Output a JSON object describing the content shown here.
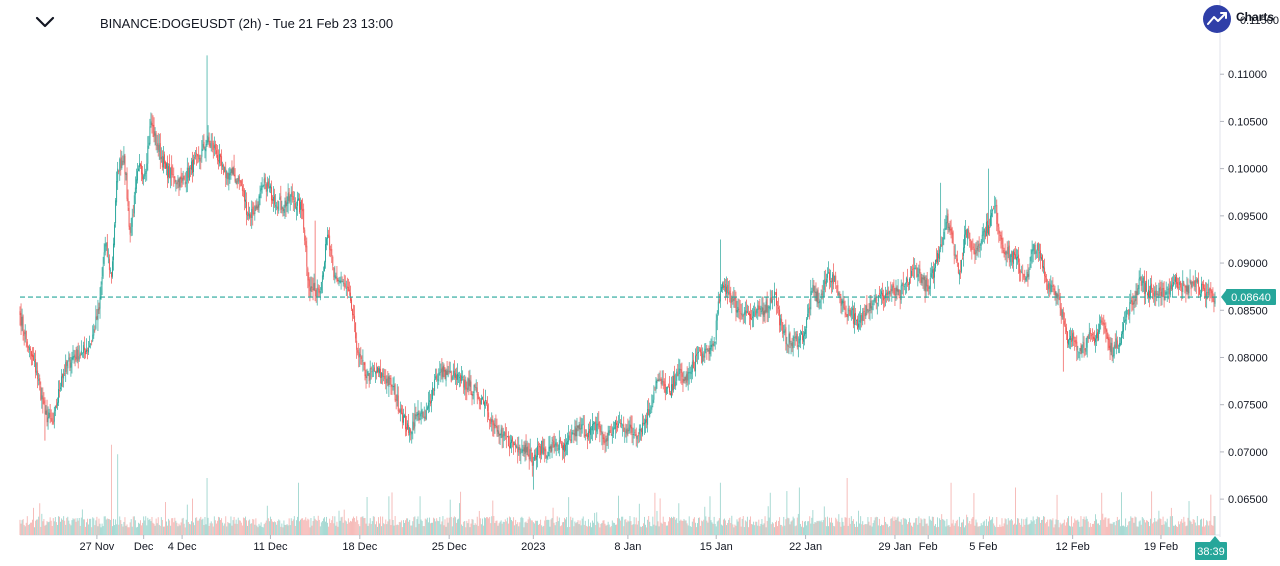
{
  "header": {
    "title": "BINANCE:DOGEUSDT (2h) - Tue 21 Feb 23 13:00",
    "logo_text": "Charts",
    "logo_cut": "0.11500"
  },
  "colors": {
    "up": "#26a69a",
    "down": "#ef5350",
    "volume_up": "#9fd6cf",
    "volume_down": "#f5b6b3",
    "price_line": "#26a69a",
    "logo_bg": "#2f3fa8"
  },
  "chart_data": {
    "type": "candlestick",
    "symbol": "BINANCE:DOGEUSDT",
    "interval": "2h",
    "last_price": 0.0864,
    "last_price_label": "0.08640",
    "countdown": "38:39",
    "y_axis": {
      "ticks": [
        0.11,
        0.105,
        0.1,
        0.095,
        0.09,
        0.085,
        0.08,
        0.075,
        0.07,
        0.065
      ],
      "tick_labels": [
        "0.11000",
        "0.10500",
        "0.10000",
        "0.09500",
        "0.09000",
        "0.08500",
        "0.08000",
        "0.07500",
        "0.07000",
        "0.06500"
      ],
      "range": [
        0.0612,
        0.1168
      ]
    },
    "x_axis": {
      "ticks": [
        {
          "label": "27 Nov",
          "index": 74
        },
        {
          "label": "Dec",
          "index": 119
        },
        {
          "label": "4 Dec",
          "index": 156
        },
        {
          "label": "11 Dec",
          "index": 241
        },
        {
          "label": "18 Dec",
          "index": 327
        },
        {
          "label": "25 Dec",
          "index": 413
        },
        {
          "label": "2023",
          "index": 494
        },
        {
          "label": "8 Jan",
          "index": 585
        },
        {
          "label": "15 Jan",
          "index": 670
        },
        {
          "label": "22 Jan",
          "index": 756
        },
        {
          "label": "29 Jan",
          "index": 842
        },
        {
          "label": "Feb",
          "index": 874
        },
        {
          "label": "5 Feb",
          "index": 927
        },
        {
          "label": "12 Feb",
          "index": 1013
        },
        {
          "label": "19 Feb",
          "index": 1098
        }
      ]
    },
    "anchors": [
      [
        0,
        0.0845
      ],
      [
        8,
        0.081
      ],
      [
        16,
        0.0785
      ],
      [
        24,
        0.074
      ],
      [
        32,
        0.073
      ],
      [
        40,
        0.078
      ],
      [
        50,
        0.08
      ],
      [
        60,
        0.0805
      ],
      [
        68,
        0.0815
      ],
      [
        76,
        0.085
      ],
      [
        82,
        0.092
      ],
      [
        88,
        0.0885
      ],
      [
        94,
        0.1
      ],
      [
        100,
        0.1015
      ],
      [
        106,
        0.093
      ],
      [
        114,
        0.1
      ],
      [
        120,
        0.0995
      ],
      [
        126,
        0.105
      ],
      [
        132,
        0.1025
      ],
      [
        140,
        0.1
      ],
      [
        148,
        0.099
      ],
      [
        156,
        0.0985
      ],
      [
        164,
        0.1
      ],
      [
        172,
        0.101
      ],
      [
        180,
        0.103
      ],
      [
        188,
        0.102
      ],
      [
        196,
        0.0995
      ],
      [
        204,
        0.0995
      ],
      [
        212,
        0.0985
      ],
      [
        220,
        0.095
      ],
      [
        228,
        0.096
      ],
      [
        236,
        0.0985
      ],
      [
        244,
        0.097
      ],
      [
        252,
        0.096
      ],
      [
        262,
        0.097
      ],
      [
        272,
        0.0955
      ],
      [
        278,
        0.0875
      ],
      [
        284,
        0.087
      ],
      [
        290,
        0.088
      ],
      [
        296,
        0.093
      ],
      [
        302,
        0.0885
      ],
      [
        310,
        0.088
      ],
      [
        318,
        0.086
      ],
      [
        326,
        0.08
      ],
      [
        334,
        0.078
      ],
      [
        342,
        0.0785
      ],
      [
        350,
        0.078
      ],
      [
        358,
        0.077
      ],
      [
        366,
        0.0745
      ],
      [
        374,
        0.072
      ],
      [
        382,
        0.074
      ],
      [
        390,
        0.0735
      ],
      [
        400,
        0.078
      ],
      [
        408,
        0.0785
      ],
      [
        416,
        0.078
      ],
      [
        424,
        0.0775
      ],
      [
        432,
        0.077
      ],
      [
        440,
        0.076
      ],
      [
        448,
        0.0755
      ],
      [
        456,
        0.0725
      ],
      [
        464,
        0.0715
      ],
      [
        472,
        0.071
      ],
      [
        480,
        0.0705
      ],
      [
        488,
        0.0705
      ],
      [
        494,
        0.069
      ],
      [
        500,
        0.0705
      ],
      [
        508,
        0.07
      ],
      [
        516,
        0.071
      ],
      [
        524,
        0.07
      ],
      [
        532,
        0.072
      ],
      [
        540,
        0.0725
      ],
      [
        548,
        0.072
      ],
      [
        556,
        0.073
      ],
      [
        562,
        0.071
      ],
      [
        568,
        0.072
      ],
      [
        576,
        0.073
      ],
      [
        584,
        0.0725
      ],
      [
        592,
        0.072
      ],
      [
        600,
        0.073
      ],
      [
        606,
        0.0745
      ],
      [
        612,
        0.0775
      ],
      [
        620,
        0.077
      ],
      [
        626,
        0.076
      ],
      [
        632,
        0.0785
      ],
      [
        640,
        0.0775
      ],
      [
        646,
        0.0785
      ],
      [
        652,
        0.0805
      ],
      [
        658,
        0.08
      ],
      [
        664,
        0.081
      ],
      [
        668,
        0.0815
      ],
      [
        674,
        0.087
      ],
      [
        680,
        0.0875
      ],
      [
        686,
        0.086
      ],
      [
        692,
        0.085
      ],
      [
        698,
        0.085
      ],
      [
        704,
        0.084
      ],
      [
        712,
        0.085
      ],
      [
        720,
        0.0855
      ],
      [
        726,
        0.087
      ],
      [
        734,
        0.0825
      ],
      [
        742,
        0.0815
      ],
      [
        750,
        0.082
      ],
      [
        756,
        0.083
      ],
      [
        762,
        0.087
      ],
      [
        770,
        0.086
      ],
      [
        778,
        0.089
      ],
      [
        786,
        0.0875
      ],
      [
        794,
        0.085
      ],
      [
        800,
        0.085
      ],
      [
        806,
        0.083
      ],
      [
        814,
        0.0855
      ],
      [
        822,
        0.086
      ],
      [
        830,
        0.0865
      ],
      [
        838,
        0.087
      ],
      [
        846,
        0.0865
      ],
      [
        854,
        0.088
      ],
      [
        862,
        0.0895
      ],
      [
        868,
        0.0885
      ],
      [
        874,
        0.087
      ],
      [
        880,
        0.0895
      ],
      [
        886,
        0.092
      ],
      [
        892,
        0.095
      ],
      [
        898,
        0.092
      ],
      [
        904,
        0.089
      ],
      [
        910,
        0.0935
      ],
      [
        918,
        0.091
      ],
      [
        926,
        0.093
      ],
      [
        932,
        0.094
      ],
      [
        938,
        0.096
      ],
      [
        944,
        0.0925
      ],
      [
        950,
        0.091
      ],
      [
        958,
        0.0905
      ],
      [
        964,
        0.089
      ],
      [
        970,
        0.0885
      ],
      [
        976,
        0.092
      ],
      [
        982,
        0.0905
      ],
      [
        988,
        0.088
      ],
      [
        994,
        0.0875
      ],
      [
        1000,
        0.0865
      ],
      [
        1004,
        0.084
      ],
      [
        1008,
        0.0815
      ],
      [
        1014,
        0.082
      ],
      [
        1020,
        0.081
      ],
      [
        1028,
        0.082
      ],
      [
        1034,
        0.0815
      ],
      [
        1040,
        0.084
      ],
      [
        1044,
        0.083
      ],
      [
        1048,
        0.081
      ],
      [
        1054,
        0.081
      ],
      [
        1060,
        0.0825
      ],
      [
        1066,
        0.085
      ],
      [
        1072,
        0.086
      ],
      [
        1078,
        0.0885
      ],
      [
        1084,
        0.087
      ],
      [
        1090,
        0.087
      ],
      [
        1098,
        0.0865
      ],
      [
        1104,
        0.087
      ],
      [
        1110,
        0.088
      ],
      [
        1116,
        0.088
      ],
      [
        1122,
        0.087
      ],
      [
        1128,
        0.088
      ],
      [
        1134,
        0.0875
      ],
      [
        1140,
        0.087
      ],
      [
        1146,
        0.0868
      ],
      [
        1150,
        0.0864
      ]
    ],
    "spikes": [
      {
        "index": 180,
        "high": 0.112
      },
      {
        "index": 284,
        "high": 0.0945
      },
      {
        "index": 674,
        "high": 0.0925
      },
      {
        "index": 886,
        "high": 0.0985
      },
      {
        "index": 932,
        "high": 0.1
      },
      {
        "index": 494,
        "low": 0.066
      },
      {
        "index": 1004,
        "low": 0.0785
      },
      {
        "index": 24,
        "low": 0.0712
      }
    ],
    "volume_spikes": [
      {
        "index": 88,
        "value": 0.95
      },
      {
        "index": 94,
        "value": 0.85
      },
      {
        "index": 180,
        "value": 0.6
      },
      {
        "index": 268,
        "value": 0.55
      },
      {
        "index": 674,
        "value": 0.55
      },
      {
        "index": 750,
        "value": 0.5
      },
      {
        "index": 796,
        "value": 0.6
      },
      {
        "index": 896,
        "value": 0.55
      },
      {
        "index": 958,
        "value": 0.5
      },
      {
        "index": 1060,
        "value": 0.45
      }
    ]
  }
}
